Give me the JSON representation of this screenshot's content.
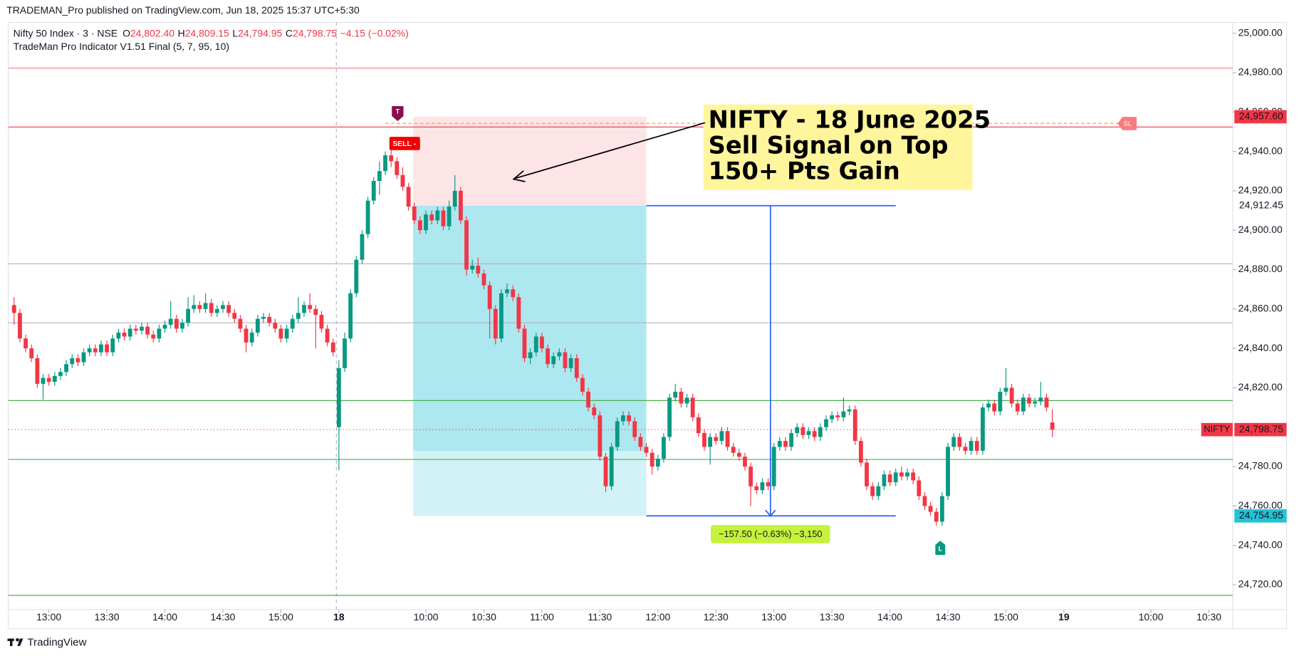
{
  "header": {
    "published": "TRADEMAN_Pro published on TradingView.com, Jun 18, 2025 15:37 UTC+5:30",
    "footer": "TradingView"
  },
  "chart_data": {
    "type": "candlestick",
    "symbol": "Nifty 50 Index · 3 · NSE",
    "legend": [
      {
        "key": "O",
        "value": "24,802.40"
      },
      {
        "key": "H",
        "value": "24,809.15"
      },
      {
        "key": "L",
        "value": "24,794.95"
      },
      {
        "key": "C",
        "value": "24,798.75"
      }
    ],
    "change": "−4.15 (−0.02%)",
    "indicator": "TradeMan Pro Indicator V1.51 Final (5, 7, 95, 10)",
    "up_color": "#089981",
    "down_color": "#f23645",
    "xlim": [
      -1,
      210.1
    ],
    "ylim": [
      24707.4,
      25005.5
    ],
    "xticks": [
      {
        "value": 6,
        "label": "13:00"
      },
      {
        "value": 16,
        "label": "13:30"
      },
      {
        "value": 26,
        "label": "14:00"
      },
      {
        "value": 36,
        "label": "14:30"
      },
      {
        "value": 46,
        "label": "15:00"
      },
      {
        "value": 56,
        "label": "18"
      },
      {
        "value": 71,
        "label": "10:00"
      },
      {
        "value": 81,
        "label": "10:30"
      },
      {
        "value": 91,
        "label": "11:00"
      },
      {
        "value": 101,
        "label": "11:30"
      },
      {
        "value": 111,
        "label": "12:00"
      },
      {
        "value": 121,
        "label": "12:30"
      },
      {
        "value": 131,
        "label": "13:00"
      },
      {
        "value": 141,
        "label": "13:30"
      },
      {
        "value": 151,
        "label": "14:00"
      },
      {
        "value": 161,
        "label": "14:30"
      },
      {
        "value": 171,
        "label": "15:00"
      },
      {
        "value": 181,
        "label": "19"
      },
      {
        "value": 196,
        "label": "10:00"
      },
      {
        "value": 206,
        "label": "10:30"
      }
    ],
    "yticks": [
      {
        "value": 24720,
        "label": "24,720.00"
      },
      {
        "value": 24740,
        "label": "24,740.00"
      },
      {
        "value": 24760,
        "label": "24,760.00"
      },
      {
        "value": 24780,
        "label": "24,780.00"
      },
      {
        "value": 24820,
        "label": "24,820.00"
      },
      {
        "value": 24840,
        "label": "24,840.00"
      },
      {
        "value": 24860,
        "label": "24,860.00"
      },
      {
        "value": 24880,
        "label": "24,880.00"
      },
      {
        "value": 24900,
        "label": "24,900.00"
      },
      {
        "value": 24920,
        "label": "24,920.00"
      },
      {
        "value": 24940,
        "label": "24,940.00"
      },
      {
        "value": 24960,
        "label": "24,960.00"
      },
      {
        "value": 24980,
        "label": "24,980.00"
      },
      {
        "value": 25000,
        "label": "25,000.00"
      }
    ],
    "levels": [
      {
        "value": 24982.3,
        "color": "#f77c80"
      },
      {
        "value": 24952.4,
        "color": "#f23645"
      },
      {
        "value": 24882.9,
        "color": "#b2b5be"
      },
      {
        "value": 24853,
        "color": "#b2b5be"
      },
      {
        "value": 24813.5,
        "color": "#4caf50"
      },
      {
        "value": 24783.6,
        "color": "#4caf50"
      },
      {
        "value": 24714.6,
        "color": "#4caf50"
      }
    ],
    "position": {
      "start": 68.8,
      "end": 109,
      "stop": 24957.6,
      "entry": 24912.45,
      "target": 24754.95
    },
    "measure": {
      "x": 130.4,
      "end": 152,
      "label": "−157.50 (−0.63%) −3,150"
    },
    "price_labels": [
      {
        "value": 24957.6,
        "label": "24,957.60",
        "color": "#f23645"
      },
      {
        "value": 24912.45,
        "label": "24,912.45"
      },
      {
        "value": 24798.75,
        "label": "24,798.75",
        "color": "#f23645",
        "tag": "NIFTY"
      },
      {
        "value": 24754.95,
        "label": "24,754.95",
        "color": "#22c3d6"
      }
    ],
    "signals": {
      "sell": "SELL -",
      "t": "T",
      "sl": "SL",
      "l": "L"
    },
    "annotation": [
      "NIFTY - 18 June 2025",
      "Sell Signal on Top",
      "150+ Pts Gain"
    ],
    "candles": [
      [
        24862,
        24866,
        24852,
        24858
      ],
      [
        24858,
        24860,
        24843,
        24845
      ],
      [
        24845,
        24847,
        24838,
        24840
      ],
      [
        24840,
        24842,
        24833,
        24835
      ],
      [
        24835,
        24837,
        24820,
        24822
      ],
      [
        24822,
        24827,
        24814,
        24825
      ],
      [
        24825,
        24827,
        24821,
        24823
      ],
      [
        24823,
        24828,
        24821,
        24826
      ],
      [
        24826,
        24830,
        24824,
        24828
      ],
      [
        24828,
        24834,
        24826,
        24832
      ],
      [
        24832,
        24837,
        24830,
        24835
      ],
      [
        24835,
        24837,
        24831,
        24833
      ],
      [
        24833,
        24840,
        24831,
        24838
      ],
      [
        24838,
        24842,
        24836,
        24840
      ],
      [
        24840,
        24842,
        24836,
        24838
      ],
      [
        24838,
        24844,
        24836,
        24842
      ],
      [
        24842,
        24844,
        24836,
        24838
      ],
      [
        24838,
        24847,
        24836,
        24845
      ],
      [
        24845,
        24850,
        24843,
        24848
      ],
      [
        24848,
        24850,
        24844,
        24846
      ],
      [
        24846,
        24852,
        24844,
        24850
      ],
      [
        24850,
        24852,
        24847,
        24849
      ],
      [
        24849,
        24853,
        24847,
        24851
      ],
      [
        24851,
        24853,
        24845,
        24847
      ],
      [
        24847,
        24849,
        24843,
        24845
      ],
      [
        24845,
        24852,
        24843,
        24850
      ],
      [
        24850,
        24854,
        24848,
        24852
      ],
      [
        24852,
        24864,
        24850,
        24855
      ],
      [
        24855,
        24857,
        24848,
        24850
      ],
      [
        24850,
        24855,
        24848,
        24853
      ],
      [
        24853,
        24866,
        24851,
        24860
      ],
      [
        24860,
        24867,
        24858,
        24862
      ],
      [
        24862,
        24864,
        24858,
        24860
      ],
      [
        24860,
        24868,
        24858,
        24863
      ],
      [
        24863,
        24865,
        24856,
        24858
      ],
      [
        24858,
        24862,
        24856,
        24860
      ],
      [
        24860,
        24864,
        24858,
        24862
      ],
      [
        24862,
        24864,
        24856,
        24858
      ],
      [
        24858,
        24860,
        24853,
        24855
      ],
      [
        24855,
        24857,
        24848,
        24850
      ],
      [
        24850,
        24852,
        24838,
        24843
      ],
      [
        24843,
        24850,
        24841,
        24848
      ],
      [
        24848,
        24857,
        24846,
        24855
      ],
      [
        24855,
        24858,
        24853,
        24856
      ],
      [
        24856,
        24858,
        24851,
        24853
      ],
      [
        24853,
        24855,
        24848,
        24850
      ],
      [
        24850,
        24852,
        24843,
        24845
      ],
      [
        24845,
        24852,
        24843,
        24850
      ],
      [
        24850,
        24857,
        24848,
        24855
      ],
      [
        24855,
        24866,
        24853,
        24858
      ],
      [
        24858,
        24864,
        24856,
        24862
      ],
      [
        24862,
        24868,
        24858,
        24860
      ],
      [
        24860,
        24862,
        24840,
        24857
      ],
      [
        24857,
        24859,
        24848,
        24850
      ],
      [
        24850,
        24852,
        24841,
        24843
      ],
      [
        24843,
        24845,
        24836,
        24838
      ],
      [
        24800,
        24834,
        24778,
        24830
      ],
      [
        24830,
        24848,
        24828,
        24845
      ],
      [
        24845,
        24870,
        24843,
        24868
      ],
      [
        24868,
        24887,
        24866,
        24885
      ],
      [
        24885,
        24900,
        24883,
        24898
      ],
      [
        24898,
        24917,
        24896,
        24915
      ],
      [
        24915,
        24927,
        24913,
        24925
      ],
      [
        24925,
        24935,
        24918,
        24930
      ],
      [
        24930,
        24940,
        24928,
        24938
      ],
      [
        24938,
        24946,
        24932,
        24935
      ],
      [
        24935,
        24937,
        24926,
        24928
      ],
      [
        24928,
        24932,
        24920,
        24922
      ],
      [
        24922,
        24924,
        24910,
        24912
      ],
      [
        24912,
        24914,
        24903,
        24905
      ],
      [
        24905,
        24907,
        24898,
        24900
      ],
      [
        24900,
        24910,
        24898,
        24908
      ],
      [
        24908,
        24910,
        24903,
        24905
      ],
      [
        24905,
        24912,
        24903,
        24910
      ],
      [
        24910,
        24912,
        24900,
        24902
      ],
      [
        24902,
        24915,
        24900,
        24912
      ],
      [
        24912,
        24928,
        24910,
        24920
      ],
      [
        24920,
        24922,
        24903,
        24905
      ],
      [
        24905,
        24907,
        24877,
        24880
      ],
      [
        24880,
        24885,
        24878,
        24882
      ],
      [
        24882,
        24886,
        24876,
        24878
      ],
      [
        24878,
        24880,
        24870,
        24872
      ],
      [
        24872,
        24874,
        24845,
        24860
      ],
      [
        24860,
        24862,
        24842,
        24845
      ],
      [
        24845,
        24870,
        24843,
        24868
      ],
      [
        24868,
        24873,
        24866,
        24870
      ],
      [
        24870,
        24872,
        24864,
        24866
      ],
      [
        24866,
        24868,
        24848,
        24850
      ],
      [
        24850,
        24852,
        24833,
        24835
      ],
      [
        24835,
        24840,
        24832,
        24838
      ],
      [
        24838,
        24848,
        24836,
        24846
      ],
      [
        24846,
        24848,
        24838,
        24840
      ],
      [
        24840,
        24842,
        24830,
        24832
      ],
      [
        24832,
        24838,
        24830,
        24836
      ],
      [
        24836,
        24840,
        24834,
        24838
      ],
      [
        24838,
        24840,
        24828,
        24830
      ],
      [
        24830,
        24837,
        24828,
        24835
      ],
      [
        24835,
        24837,
        24823,
        24825
      ],
      [
        24825,
        24827,
        24816,
        24818
      ],
      [
        24818,
        24820,
        24808,
        24810
      ],
      [
        24810,
        24812,
        24804,
        24806
      ],
      [
        24806,
        24808,
        24783,
        24785
      ],
      [
        24785,
        24787,
        24767,
        24770
      ],
      [
        24770,
        24792,
        24768,
        24790
      ],
      [
        24790,
        24805,
        24788,
        24803
      ],
      [
        24803,
        24808,
        24801,
        24806
      ],
      [
        24806,
        24808,
        24801,
        24803
      ],
      [
        24803,
        24805,
        24793,
        24795
      ],
      [
        24795,
        24797,
        24788,
        24790
      ],
      [
        24790,
        24792,
        24785,
        24787
      ],
      [
        24787,
        24789,
        24776,
        24780
      ],
      [
        24780,
        24786,
        24778,
        24784
      ],
      [
        24784,
        24797,
        24782,
        24795
      ],
      [
        24795,
        24817,
        24793,
        24815
      ],
      [
        24815,
        24822,
        24813,
        24818
      ],
      [
        24818,
        24820,
        24810,
        24812
      ],
      [
        24812,
        24817,
        24810,
        24815
      ],
      [
        24815,
        24817,
        24803,
        24805
      ],
      [
        24805,
        24807,
        24795,
        24797
      ],
      [
        24797,
        24799,
        24788,
        24790
      ],
      [
        24790,
        24797,
        24781,
        24795
      ],
      [
        24795,
        24797,
        24791,
        24793
      ],
      [
        24793,
        24800,
        24791,
        24798
      ],
      [
        24798,
        24800,
        24788,
        24790
      ],
      [
        24790,
        24792,
        24785,
        24787
      ],
      [
        24787,
        24789,
        24783,
        24785
      ],
      [
        24785,
        24787,
        24778,
        24780
      ],
      [
        24780,
        24782,
        24760,
        24770
      ],
      [
        24770,
        24772,
        24766,
        24768
      ],
      [
        24768,
        24774,
        24766,
        24772
      ],
      [
        24772,
        24774,
        24768,
        24770
      ],
      [
        24770,
        24792,
        24768,
        24790
      ],
      [
        24790,
        24795,
        24788,
        24793
      ],
      [
        24793,
        24795,
        24788,
        24790
      ],
      [
        24790,
        24799,
        24788,
        24797
      ],
      [
        24797,
        24802,
        24795,
        24800
      ],
      [
        24800,
        24802,
        24794,
        24796
      ],
      [
        24796,
        24800,
        24794,
        24798
      ],
      [
        24798,
        24800,
        24793,
        24795
      ],
      [
        24795,
        24802,
        24793,
        24800
      ],
      [
        24800,
        24806,
        24798,
        24804
      ],
      [
        24804,
        24808,
        24802,
        24806
      ],
      [
        24806,
        24808,
        24803,
        24805
      ],
      [
        24805,
        24815,
        24803,
        24808
      ],
      [
        24808,
        24811,
        24806,
        24809
      ],
      [
        24809,
        24811,
        24791,
        24793
      ],
      [
        24793,
        24795,
        24780,
        24782
      ],
      [
        24782,
        24784,
        24768,
        24770
      ],
      [
        24770,
        24772,
        24763,
        24765
      ],
      [
        24765,
        24772,
        24763,
        24770
      ],
      [
        24770,
        24778,
        24768,
        24776
      ],
      [
        24776,
        24778,
        24770,
        24772
      ],
      [
        24772,
        24779,
        24770,
        24777
      ],
      [
        24777,
        24780,
        24773,
        24775
      ],
      [
        24775,
        24779,
        24773,
        24777
      ],
      [
        24777,
        24779,
        24771,
        24773
      ],
      [
        24773,
        24775,
        24763,
        24765
      ],
      [
        24765,
        24767,
        24758,
        24760
      ],
      [
        24760,
        24762,
        24755,
        24757
      ],
      [
        24757,
        24759,
        24750,
        24752
      ],
      [
        24752,
        24767,
        24750,
        24765
      ],
      [
        24765,
        24792,
        24763,
        24790
      ],
      [
        24790,
        24797,
        24788,
        24795
      ],
      [
        24795,
        24797,
        24788,
        24790
      ],
      [
        24790,
        24792,
        24786,
        24788
      ],
      [
        24788,
        24795,
        24786,
        24793
      ],
      [
        24793,
        24795,
        24786,
        24788
      ],
      [
        24788,
        24812,
        24786,
        24810
      ],
      [
        24810,
        24814,
        24808,
        24812
      ],
      [
        24812,
        24814,
        24806,
        24808
      ],
      [
        24808,
        24820,
        24806,
        24818
      ],
      [
        24818,
        24830,
        24816,
        24820
      ],
      [
        24820,
        24822,
        24810,
        24812
      ],
      [
        24812,
        24814,
        24806,
        24808
      ],
      [
        24808,
        24817,
        24806,
        24815
      ],
      [
        24815,
        24817,
        24810,
        24812
      ],
      [
        24812,
        24815,
        24810,
        24813
      ],
      [
        24813,
        24823,
        24811,
        24815
      ],
      [
        24815,
        24817,
        24808,
        24810
      ],
      [
        24802.4,
        24809.15,
        24794.95,
        24798.75
      ]
    ]
  }
}
